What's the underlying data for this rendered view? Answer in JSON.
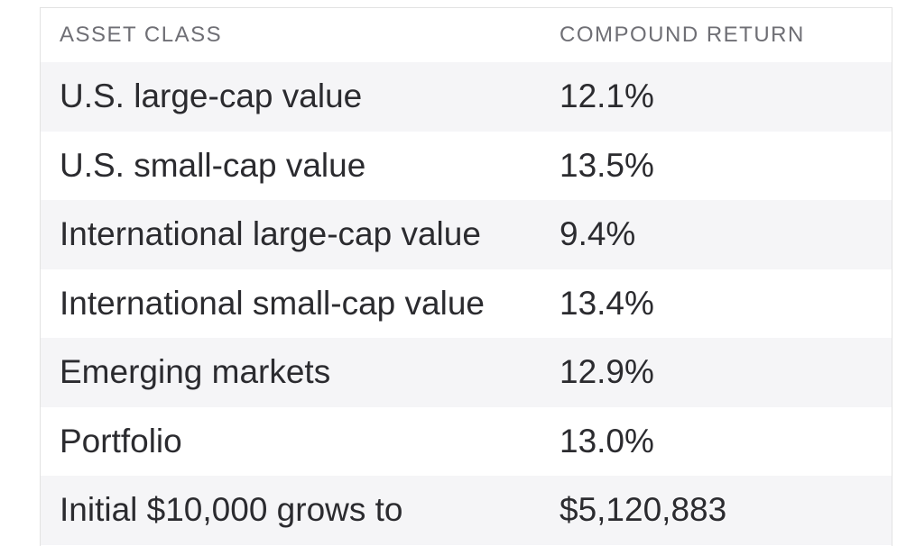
{
  "table": {
    "headers": [
      "ASSET CLASS",
      "COMPOUND RETURN"
    ],
    "rows": [
      {
        "asset": "U.S. large-cap value",
        "return": "12.1%"
      },
      {
        "asset": "U.S. small-cap value",
        "return": "13.5%"
      },
      {
        "asset": "International large-cap value",
        "return": "9.4%"
      },
      {
        "asset": "International small-cap value",
        "return": "13.4%"
      },
      {
        "asset": "Emerging markets",
        "return": "12.9%"
      },
      {
        "asset": "Portfolio",
        "return": "13.0%"
      },
      {
        "asset": "Initial $10,000 grows to",
        "return": "$5,120,883"
      }
    ]
  },
  "colors": {
    "header_text": "#6f6f75",
    "body_text": "#2b2b2f",
    "stripe": "#f5f5f7",
    "border": "#e2e2e2"
  }
}
